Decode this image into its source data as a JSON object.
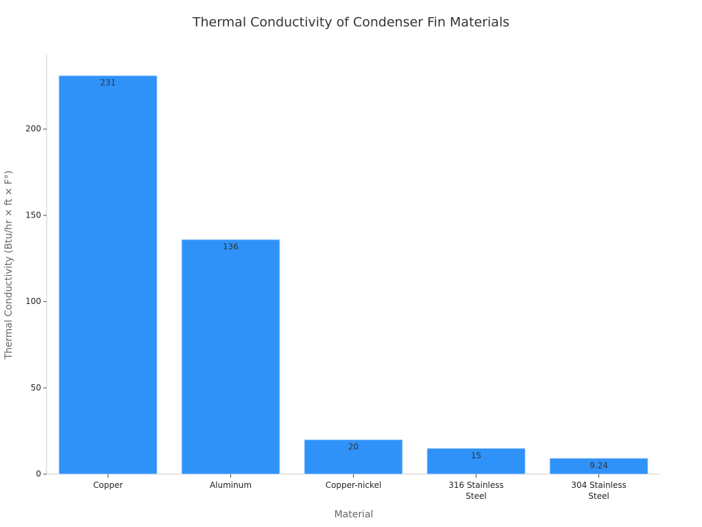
{
  "chart_data": {
    "type": "bar",
    "title": "Thermal Conductivity of Condenser Fin Materials",
    "x_label": "Material",
    "y_label": "Thermal Conductivity (Btu/hr × ft × F°)",
    "categories": [
      "Copper",
      "Aluminum",
      "Copper-nickel",
      "316 Stainless Steel",
      "304 Stainless Steel"
    ],
    "values": [
      231,
      136,
      20,
      15,
      9.24
    ],
    "color": "#2f92f9",
    "ylim": [
      0,
      243
    ],
    "yticks": [
      0,
      50,
      100,
      150,
      200
    ],
    "grid": false
  }
}
